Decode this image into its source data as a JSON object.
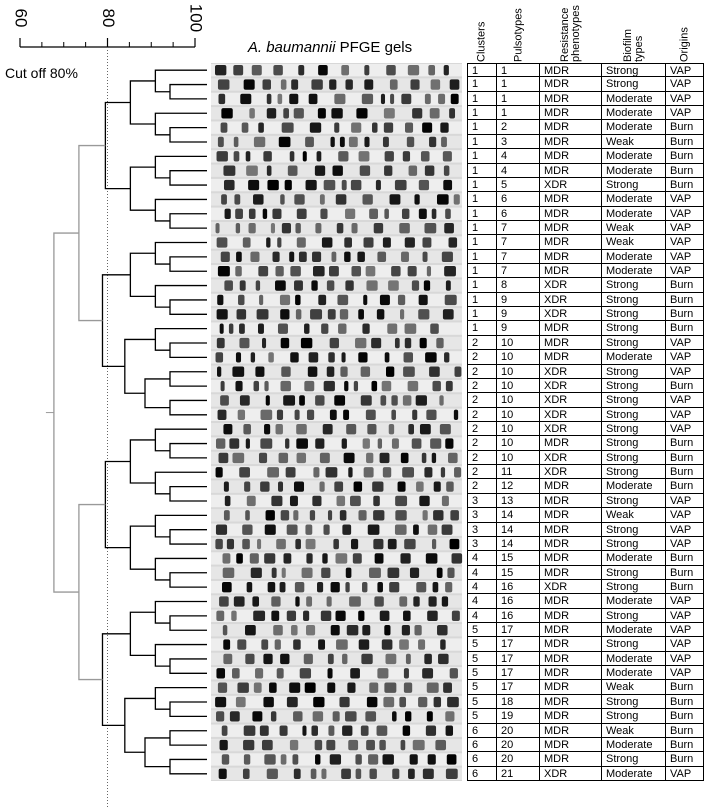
{
  "scale": {
    "range": [
      60,
      100
    ],
    "ticks": [
      60,
      80,
      100
    ],
    "cutoff": 80,
    "cutoff_label": "Cut off 80%"
  },
  "gel": {
    "species": "A. baumannii",
    "title": "PFGE gels"
  },
  "table": {
    "headers": [
      "Clusters",
      "Pulsotypes",
      "Resistance phenotypes",
      "Biofilm types",
      "Origins"
    ],
    "rows": [
      [
        "1",
        "1",
        "MDR",
        "Strong",
        "VAP"
      ],
      [
        "1",
        "1",
        "MDR",
        "Strong",
        "VAP"
      ],
      [
        "1",
        "1",
        "MDR",
        "Moderate",
        "VAP"
      ],
      [
        "1",
        "1",
        "MDR",
        "Moderate",
        "VAP"
      ],
      [
        "1",
        "2",
        "MDR",
        "Moderate",
        "Burn"
      ],
      [
        "1",
        "3",
        "MDR",
        "Weak",
        "Burn"
      ],
      [
        "1",
        "4",
        "MDR",
        "Moderate",
        "Burn"
      ],
      [
        "1",
        "4",
        "MDR",
        "Moderate",
        "Burn"
      ],
      [
        "1",
        "5",
        "XDR",
        "Strong",
        "Burn"
      ],
      [
        "1",
        "6",
        "MDR",
        "Moderate",
        "VAP"
      ],
      [
        "1",
        "6",
        "MDR",
        "Moderate",
        "VAP"
      ],
      [
        "1",
        "7",
        "MDR",
        "Weak",
        "VAP"
      ],
      [
        "1",
        "7",
        "MDR",
        "Weak",
        "VAP"
      ],
      [
        "1",
        "7",
        "MDR",
        "Moderate",
        "VAP"
      ],
      [
        "1",
        "7",
        "MDR",
        "Moderate",
        "VAP"
      ],
      [
        "1",
        "8",
        "XDR",
        "Strong",
        "Burn"
      ],
      [
        "1",
        "9",
        "XDR",
        "Strong",
        "Burn"
      ],
      [
        "1",
        "9",
        "XDR",
        "Strong",
        "Burn"
      ],
      [
        "1",
        "9",
        "MDR",
        "Strong",
        "Burn"
      ],
      [
        "2",
        "10",
        "MDR",
        "Strong",
        "VAP"
      ],
      [
        "2",
        "10",
        "MDR",
        "Moderate",
        "VAP"
      ],
      [
        "2",
        "10",
        "XDR",
        "Strong",
        "VAP"
      ],
      [
        "2",
        "10",
        "XDR",
        "Strong",
        "Burn"
      ],
      [
        "2",
        "10",
        "XDR",
        "Strong",
        "VAP"
      ],
      [
        "2",
        "10",
        "XDR",
        "Strong",
        "VAP"
      ],
      [
        "2",
        "10",
        "XDR",
        "Strong",
        "VAP"
      ],
      [
        "2",
        "10",
        "MDR",
        "Strong",
        "Burn"
      ],
      [
        "2",
        "10",
        "XDR",
        "Strong",
        "Burn"
      ],
      [
        "2",
        "11",
        "XDR",
        "Strong",
        "Burn"
      ],
      [
        "2",
        "12",
        "MDR",
        "Moderate",
        "Burn"
      ],
      [
        "3",
        "13",
        "MDR",
        "Strong",
        "VAP"
      ],
      [
        "3",
        "14",
        "MDR",
        "Weak",
        "VAP"
      ],
      [
        "3",
        "14",
        "MDR",
        "Strong",
        "VAP"
      ],
      [
        "3",
        "14",
        "MDR",
        "Strong",
        "VAP"
      ],
      [
        "4",
        "15",
        "MDR",
        "Moderate",
        "Burn"
      ],
      [
        "4",
        "15",
        "MDR",
        "Strong",
        "Burn"
      ],
      [
        "4",
        "16",
        "XDR",
        "Strong",
        "Burn"
      ],
      [
        "4",
        "16",
        "MDR",
        "Moderate",
        "VAP"
      ],
      [
        "4",
        "16",
        "MDR",
        "Strong",
        "VAP"
      ],
      [
        "5",
        "17",
        "MDR",
        "Moderate",
        "VAP"
      ],
      [
        "5",
        "17",
        "MDR",
        "Strong",
        "VAP"
      ],
      [
        "5",
        "17",
        "MDR",
        "Moderate",
        "VAP"
      ],
      [
        "5",
        "17",
        "MDR",
        "Moderate",
        "VAP"
      ],
      [
        "5",
        "17",
        "MDR",
        "Weak",
        "Burn"
      ],
      [
        "5",
        "18",
        "MDR",
        "Strong",
        "Burn"
      ],
      [
        "5",
        "19",
        "MDR",
        "Strong",
        "Burn"
      ],
      [
        "6",
        "20",
        "MDR",
        "Weak",
        "Burn"
      ],
      [
        "6",
        "20",
        "MDR",
        "Moderate",
        "Burn"
      ],
      [
        "6",
        "20",
        "MDR",
        "Strong",
        "Burn"
      ],
      [
        "6",
        "21",
        "XDR",
        "Moderate",
        "VAP"
      ]
    ]
  }
}
